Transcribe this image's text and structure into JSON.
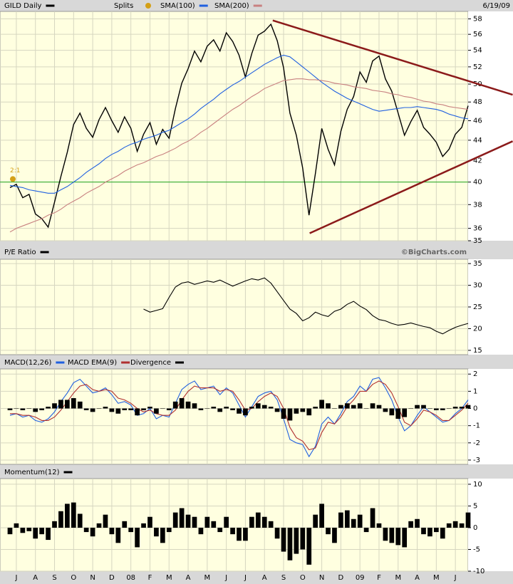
{
  "chart_data": [
    {
      "type": "line",
      "log": true,
      "date": "6/19/09",
      "source": "©BigCharts.com",
      "ylim": [
        35,
        59
      ],
      "yticks": [
        35,
        36,
        38,
        40,
        42,
        44,
        46,
        48,
        50,
        52,
        54,
        56,
        58
      ],
      "grid": true,
      "hline": {
        "value": 40,
        "color": "#22aa22"
      },
      "series": [
        {
          "name": "GILD Daily",
          "color": "#000000",
          "values": [
            39.5,
            39.8,
            38.6,
            38.9,
            37.2,
            36.8,
            36.1,
            38.2,
            40.5,
            42.8,
            45.6,
            46.8,
            45.2,
            44.3,
            46.1,
            47.4,
            46.0,
            44.8,
            46.4,
            45.2,
            42.9,
            44.6,
            45.8,
            43.6,
            45.1,
            44.2,
            47.3,
            50.1,
            51.8,
            53.9,
            52.6,
            54.5,
            55.3,
            53.9,
            56.2,
            55.1,
            53.4,
            50.8,
            53.6,
            55.9,
            56.4,
            57.3,
            55.2,
            51.9,
            46.8,
            44.5,
            41.3,
            37.1,
            40.8,
            45.2,
            43.1,
            41.6,
            44.9,
            47.2,
            48.6,
            51.4,
            50.2,
            52.7,
            53.3,
            50.6,
            49.2,
            46.8,
            44.5,
            45.9,
            47.1,
            45.3,
            44.6,
            43.8,
            42.4,
            43.1,
            44.6,
            45.3,
            47.6
          ]
        },
        {
          "name": "SMA(100)",
          "color": "#2060e0",
          "values": [
            39.7,
            39.6,
            39.5,
            39.3,
            39.2,
            39.1,
            39.0,
            39.0,
            39.3,
            39.6,
            40.0,
            40.4,
            40.9,
            41.3,
            41.7,
            42.2,
            42.6,
            42.9,
            43.3,
            43.6,
            43.8,
            44.1,
            44.3,
            44.5,
            44.8,
            45.0,
            45.4,
            45.8,
            46.2,
            46.7,
            47.3,
            47.8,
            48.3,
            48.9,
            49.4,
            49.9,
            50.3,
            50.8,
            51.3,
            51.8,
            52.3,
            52.7,
            53.1,
            53.4,
            53.2,
            52.6,
            52.0,
            51.4,
            50.8,
            50.2,
            49.7,
            49.2,
            48.8,
            48.4,
            48.1,
            47.8,
            47.5,
            47.2,
            47.0,
            47.1,
            47.2,
            47.3,
            47.4,
            47.4,
            47.5,
            47.4,
            47.3,
            47.2,
            47.0,
            46.7,
            46.5,
            46.3,
            46.2
          ]
        },
        {
          "name": "SMA(200)",
          "color": "#c88080",
          "values": [
            35.7,
            36.0,
            36.2,
            36.4,
            36.6,
            36.8,
            37.1,
            37.3,
            37.6,
            38.0,
            38.3,
            38.6,
            39.0,
            39.3,
            39.6,
            40.0,
            40.3,
            40.6,
            41.0,
            41.3,
            41.6,
            41.8,
            42.1,
            42.4,
            42.6,
            42.9,
            43.2,
            43.6,
            43.9,
            44.3,
            44.8,
            45.2,
            45.7,
            46.2,
            46.7,
            47.2,
            47.6,
            48.1,
            48.6,
            49.0,
            49.5,
            49.8,
            50.1,
            50.4,
            50.5,
            50.6,
            50.6,
            50.5,
            50.5,
            50.4,
            50.3,
            50.1,
            50.0,
            49.9,
            49.7,
            49.6,
            49.5,
            49.3,
            49.2,
            49.1,
            48.9,
            48.8,
            48.6,
            48.5,
            48.3,
            48.1,
            48.0,
            47.8,
            47.7,
            47.5,
            47.4,
            47.3,
            47.2
          ]
        }
      ],
      "trendlines": [
        {
          "color": "#8b1a1a",
          "x": [
            41.3,
            79
          ],
          "y": [
            57.8,
            48.8
          ]
        },
        {
          "color": "#8b1a1a",
          "x": [
            47.1,
            79
          ],
          "y": [
            35.6,
            43.9
          ]
        }
      ],
      "splits": {
        "name": "Splits",
        "color": "#d4a017",
        "x": [
          0
        ],
        "labels": [
          "2:1"
        ]
      }
    },
    {
      "type": "line",
      "ylim": [
        14,
        36
      ],
      "yticks": [
        15,
        20,
        25,
        30,
        35
      ],
      "grid": true,
      "series": [
        {
          "name": "P/E Ratio",
          "color": "#000000",
          "values": [
            null,
            null,
            null,
            null,
            null,
            null,
            null,
            null,
            null,
            null,
            null,
            null,
            null,
            null,
            null,
            null,
            null,
            null,
            null,
            null,
            null,
            24.5,
            23.8,
            24.2,
            24.6,
            27.2,
            29.6,
            30.5,
            30.8,
            30.2,
            30.6,
            31.0,
            30.7,
            31.2,
            30.5,
            29.8,
            30.4,
            31.0,
            31.5,
            31.2,
            31.7,
            30.5,
            28.5,
            26.5,
            24.5,
            23.5,
            21.8,
            22.5,
            23.8,
            23.2,
            22.8,
            24.0,
            24.5,
            25.6,
            26.3,
            25.2,
            24.4,
            23.0,
            22.1,
            21.8,
            21.2,
            20.8,
            21.0,
            21.3,
            20.9,
            20.5,
            20.2,
            19.4,
            18.8,
            19.6,
            20.3,
            20.8,
            21.2
          ]
        }
      ]
    },
    {
      "type": "line",
      "ylim": [
        -3.25,
        2.3
      ],
      "yticks": [
        -3,
        -2,
        -1,
        0,
        1,
        2
      ],
      "grid": true,
      "series": [
        {
          "name": "MACD(12,26)",
          "color": "#2060e0",
          "values": [
            -0.4,
            -0.3,
            -0.5,
            -0.4,
            -0.7,
            -0.8,
            -0.6,
            -0.2,
            0.4,
            0.9,
            1.5,
            1.7,
            1.3,
            0.9,
            1.0,
            1.2,
            0.8,
            0.3,
            0.4,
            0.2,
            -0.4,
            -0.3,
            0.0,
            -0.6,
            -0.4,
            -0.5,
            0.3,
            1.1,
            1.4,
            1.6,
            1.1,
            1.2,
            1.3,
            0.8,
            1.2,
            0.9,
            0.2,
            -0.5,
            0.1,
            0.7,
            0.9,
            1.0,
            0.5,
            -0.6,
            -1.8,
            -2.0,
            -2.1,
            -2.8,
            -2.2,
            -0.9,
            -0.5,
            -0.9,
            -0.3,
            0.4,
            0.7,
            1.3,
            1.0,
            1.7,
            1.8,
            1.2,
            0.5,
            -0.5,
            -1.3,
            -1.0,
            -0.4,
            0.1,
            -0.2,
            -0.5,
            -0.8,
            -0.7,
            -0.3,
            0.0,
            0.5
          ]
        },
        {
          "name": "MACD EMA(9)",
          "color": "#b03030",
          "values": [
            -0.3,
            -0.3,
            -0.4,
            -0.4,
            -0.5,
            -0.7,
            -0.7,
            -0.5,
            -0.1,
            0.4,
            0.9,
            1.3,
            1.4,
            1.1,
            1.0,
            1.1,
            1.0,
            0.6,
            0.5,
            0.3,
            0.0,
            -0.2,
            -0.1,
            -0.3,
            -0.4,
            -0.4,
            -0.1,
            0.5,
            1.0,
            1.3,
            1.2,
            1.2,
            1.2,
            1.0,
            1.1,
            1.0,
            0.5,
            -0.1,
            0.0,
            0.4,
            0.7,
            0.9,
            0.7,
            0.0,
            -1.1,
            -1.7,
            -1.9,
            -2.4,
            -2.3,
            -1.4,
            -0.8,
            -0.9,
            -0.5,
            0.1,
            0.5,
            1.0,
            1.0,
            1.4,
            1.6,
            1.4,
            0.9,
            0.1,
            -0.8,
            -1.0,
            -0.6,
            -0.1,
            -0.2,
            -0.4,
            -0.7,
            -0.7,
            -0.4,
            -0.1,
            0.3
          ]
        },
        {
          "name": "Divergence",
          "type": "bar",
          "color": "#000000",
          "values": [
            -0.1,
            0.0,
            -0.1,
            0.0,
            -0.2,
            -0.1,
            0.1,
            0.3,
            0.5,
            0.5,
            0.6,
            0.4,
            -0.1,
            -0.2,
            0.0,
            0.1,
            -0.2,
            -0.3,
            -0.1,
            -0.1,
            -0.4,
            -0.1,
            0.1,
            -0.3,
            0.0,
            -0.1,
            0.4,
            0.6,
            0.4,
            0.3,
            -0.1,
            0.0,
            0.1,
            -0.2,
            0.1,
            -0.1,
            -0.3,
            -0.4,
            0.1,
            0.3,
            0.2,
            0.1,
            -0.2,
            -0.6,
            -0.7,
            -0.3,
            -0.2,
            -0.4,
            0.1,
            0.5,
            0.3,
            0.0,
            0.2,
            0.3,
            0.2,
            0.3,
            0.0,
            0.3,
            0.2,
            -0.2,
            -0.4,
            -0.6,
            -0.5,
            0.0,
            0.2,
            0.2,
            0.0,
            -0.1,
            -0.1,
            0.0,
            0.1,
            0.1,
            0.2
          ]
        }
      ]
    },
    {
      "type": "bar",
      "ylim": [
        -10,
        11.3
      ],
      "yticks": [
        -10,
        -5,
        0,
        5,
        10
      ],
      "grid": true,
      "xlim": [
        0,
        72
      ],
      "xticks": [
        {
          "value": 1,
          "label": "J"
        },
        {
          "value": 4,
          "label": "A"
        },
        {
          "value": 7,
          "label": "S"
        },
        {
          "value": 10,
          "label": "O"
        },
        {
          "value": 13,
          "label": "N"
        },
        {
          "value": 16,
          "label": "D"
        },
        {
          "value": 19,
          "label": "08"
        },
        {
          "value": 22,
          "label": "F"
        },
        {
          "value": 25,
          "label": "M"
        },
        {
          "value": 28,
          "label": "A"
        },
        {
          "value": 31,
          "label": "M"
        },
        {
          "value": 34,
          "label": "J"
        },
        {
          "value": 37,
          "label": "J"
        },
        {
          "value": 40,
          "label": "A"
        },
        {
          "value": 43,
          "label": "S"
        },
        {
          "value": 46,
          "label": "O"
        },
        {
          "value": 49,
          "label": "N"
        },
        {
          "value": 52,
          "label": "D"
        },
        {
          "value": 55,
          "label": "09"
        },
        {
          "value": 58,
          "label": "F"
        },
        {
          "value": 61,
          "label": "M"
        },
        {
          "value": 64,
          "label": "A"
        },
        {
          "value": 67,
          "label": "M"
        },
        {
          "value": 70,
          "label": "J"
        }
      ],
      "series": [
        {
          "name": "Momentum(12)",
          "color": "#000000",
          "values": [
            -1.5,
            1.0,
            -1.2,
            -0.8,
            -2.5,
            -1.5,
            -2.8,
            1.5,
            3.8,
            5.5,
            5.8,
            3.2,
            -1.0,
            -2.0,
            1.0,
            3.0,
            -1.5,
            -3.5,
            1.5,
            -1.0,
            -4.5,
            1.0,
            2.5,
            -2.0,
            -3.5,
            -1.0,
            3.5,
            4.5,
            3.0,
            2.5,
            -1.5,
            2.5,
            1.5,
            -1.0,
            2.5,
            -1.5,
            -3.0,
            -3.0,
            2.5,
            3.5,
            2.5,
            1.5,
            -2.5,
            -5.5,
            -7.5,
            -6.0,
            -5.0,
            -8.5,
            3.0,
            5.5,
            -1.5,
            -3.5,
            3.5,
            4.0,
            2.0,
            3.0,
            -1.0,
            4.5,
            1.0,
            -3.0,
            -3.5,
            -4.0,
            -4.5,
            1.5,
            2.0,
            -1.5,
            -2.0,
            -1.0,
            -2.5,
            1.0,
            1.5,
            1.0,
            3.5
          ]
        }
      ]
    }
  ]
}
